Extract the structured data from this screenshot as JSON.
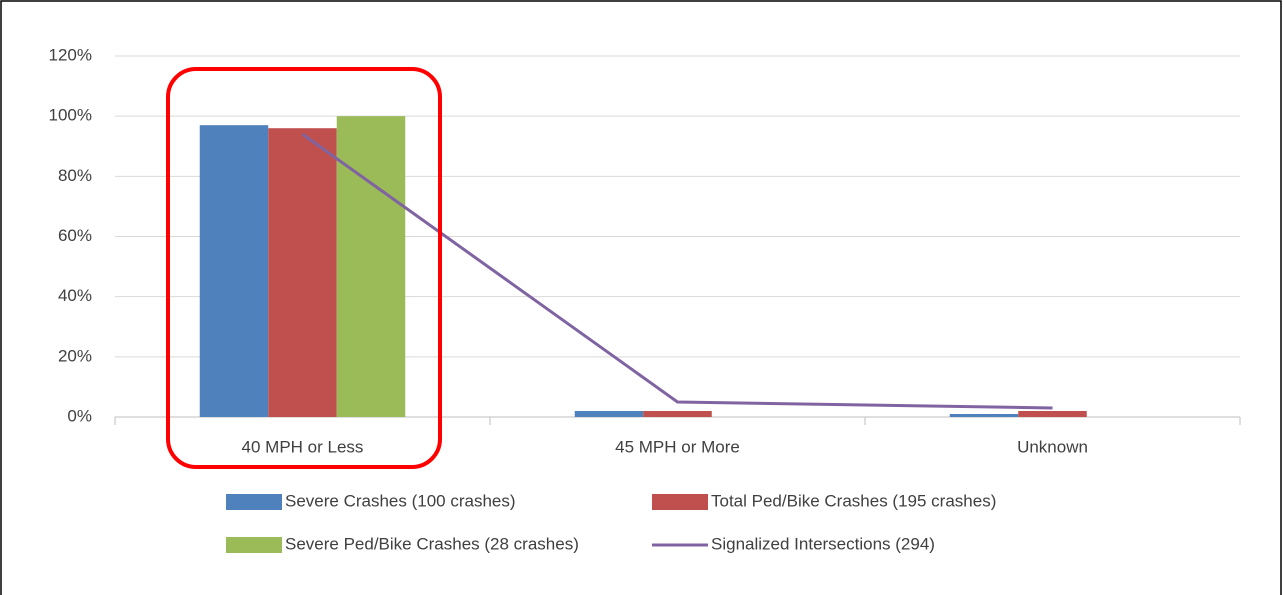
{
  "chart_data": {
    "type": "bar",
    "categories": [
      "40 MPH or Less",
      "45 MPH or More",
      "Unknown"
    ],
    "series": [
      {
        "name": "Severe Crashes (100 crashes)",
        "color": "#4f81bd",
        "values": [
          97,
          2,
          1
        ]
      },
      {
        "name": "Total Ped/Bike Crashes (195 crashes)",
        "color": "#c0504d",
        "values": [
          96,
          2,
          2
        ]
      },
      {
        "name": "Severe Ped/Bike Crashes (28 crashes)",
        "color": "#9bbb59",
        "values": [
          100,
          0,
          0
        ]
      },
      {
        "name": "Signalized Intersections (294)",
        "color": "#8064a2",
        "type": "line",
        "values": [
          94,
          5,
          3
        ]
      }
    ],
    "ylim": [
      0,
      120
    ],
    "yticks": [
      {
        "value": 0,
        "label": "0%"
      },
      {
        "value": 20,
        "label": "20%"
      },
      {
        "value": 40,
        "label": "40%"
      },
      {
        "value": 60,
        "label": "60%"
      },
      {
        "value": 80,
        "label": "80%"
      },
      {
        "value": 100,
        "label": "100%"
      },
      {
        "value": 120,
        "label": "120%"
      }
    ],
    "grid": true
  }
}
